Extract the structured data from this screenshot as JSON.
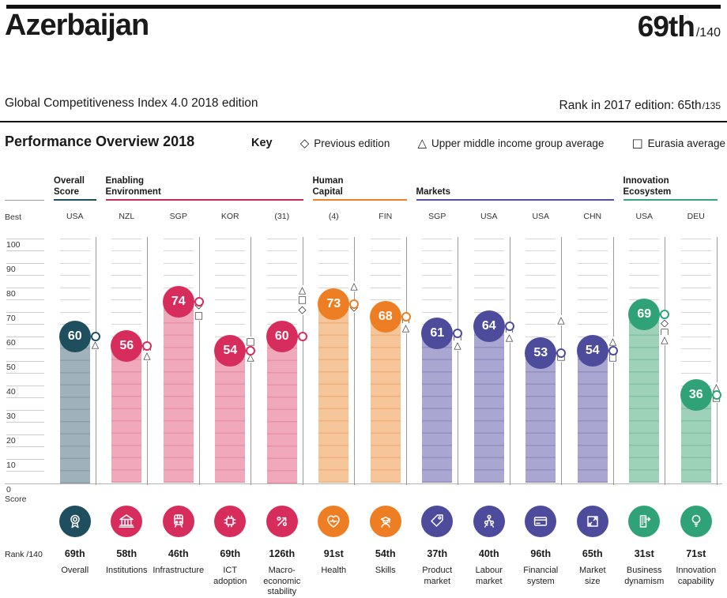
{
  "page": {
    "country": "Azerbaijan",
    "overall_rank": "69th",
    "overall_rank_denominator": "/140",
    "edition": "Global Competitiveness Index 4.0 2018 edition",
    "prev_rank_text": "Rank in 2017 edition: 65th",
    "prev_rank_denominator": "/135"
  },
  "overview": {
    "title": "Performance Overview 2018",
    "key_label": "Key",
    "legend": [
      {
        "glyph": "◇",
        "label": "Previous edition"
      },
      {
        "glyph": "△",
        "label": "Upper middle income group average"
      },
      {
        "glyph": "□",
        "label": "Eurasia average"
      }
    ]
  },
  "axis": {
    "best": "Best",
    "zero": "0",
    "score": "Score",
    "rank_axis": "Rank /140",
    "ticks": [
      100,
      90,
      80,
      70,
      60,
      50,
      40,
      30,
      20,
      10
    ]
  },
  "chart_data": {
    "type": "bar",
    "title": "Performance Overview 2018",
    "ylabel": "Score",
    "ylim": [
      0,
      100
    ],
    "gridline_step": 5,
    "legend_position": "top",
    "marker_meaning": {
      "diamond": "Previous edition",
      "triangle": "Upper middle income group average",
      "square": "Eurasia average",
      "pin": "2018 score"
    },
    "groups": [
      {
        "label": "Overall Score",
        "lines": [
          "Overall",
          "Score"
        ],
        "color": "#1F4E5F",
        "start": 0,
        "end": 0
      },
      {
        "label": "Enabling Environment",
        "lines": [
          "Enabling",
          "Environment"
        ],
        "color": "#C22E58",
        "start": 1,
        "end": 4
      },
      {
        "label": "Human Capital",
        "lines": [
          "Human",
          "Capital"
        ],
        "color": "#E8822D",
        "start": 5,
        "end": 6
      },
      {
        "label": "Markets",
        "lines": [
          "Markets"
        ],
        "color": "#524FA1",
        "start": 7,
        "end": 10
      },
      {
        "label": "Innovation Ecosystem",
        "lines": [
          "Innovation",
          "Ecosystem"
        ],
        "color": "#35A67C",
        "start": 11,
        "end": 12
      }
    ],
    "palette": [
      {
        "circle": "#1F4E5F",
        "bar": "#9FB1BB",
        "stripe": "#8AA0AC"
      },
      {
        "circle": "#D62D5D",
        "bar": "#F0A9BB",
        "stripe": "#E791A7"
      },
      {
        "circle": "#EE7E23",
        "bar": "#F6C69A",
        "stripe": "#F0AE7B"
      },
      {
        "circle": "#4D4B9C",
        "bar": "#A9A7D1",
        "stripe": "#938FC2"
      },
      {
        "circle": "#2FA377",
        "bar": "#9FD0B8",
        "stripe": "#82C2A2"
      }
    ],
    "columns": [
      {
        "pillar": "Overall",
        "name_lines": [
          "Overall"
        ],
        "best": "USA",
        "value": 60,
        "rank": "69th",
        "group": 0,
        "icon": "medal-icon",
        "markers": [
          {
            "type": "square",
            "value": 58.2
          },
          {
            "type": "triangle",
            "value": 56.2
          }
        ]
      },
      {
        "pillar": "Institutions",
        "name_lines": [
          "Institutions"
        ],
        "best": "NZL",
        "value": 56,
        "rank": "58th",
        "group": 1,
        "icon": "bank-icon",
        "markers": [
          {
            "type": "square",
            "value": 53.6
          },
          {
            "type": "triangle",
            "value": 51.9
          }
        ]
      },
      {
        "pillar": "Infrastructure",
        "name_lines": [
          "Infrastructure"
        ],
        "best": "SGP",
        "value": 74,
        "rank": "46th",
        "group": 1,
        "icon": "train-icon",
        "markers": [
          {
            "type": "diamond",
            "value": 72.4
          },
          {
            "type": "square",
            "value": 68.3
          }
        ]
      },
      {
        "pillar": "ICT adoption",
        "name_lines": [
          "ICT",
          "adoption"
        ],
        "best": "KOR",
        "value": 54,
        "rank": "69th",
        "group": 1,
        "icon": "chip-icon",
        "markers": [
          {
            "type": "square",
            "value": 57.6
          },
          {
            "type": "diamond",
            "value": 52.4
          },
          {
            "type": "triangle",
            "value": 51.0
          }
        ]
      },
      {
        "pillar": "Macro-economic stability",
        "name_lines": [
          "Macro-",
          "economic",
          "stability"
        ],
        "best": "(31)",
        "value": 60,
        "rank": "126th",
        "group": 1,
        "icon": "percent-arrow-icon",
        "markers": [
          {
            "type": "triangle",
            "value": 78.6
          },
          {
            "type": "square",
            "value": 74.6
          },
          {
            "type": "diamond",
            "value": 70.6
          }
        ]
      },
      {
        "pillar": "Health",
        "name_lines": [
          "Health"
        ],
        "best": "(4)",
        "value": 73,
        "rank": "91st",
        "group": 2,
        "icon": "heart-pulse-icon",
        "markers": [
          {
            "type": "triangle",
            "value": 80.2
          },
          {
            "type": "diamond",
            "value": 71.3
          }
        ]
      },
      {
        "pillar": "Skills",
        "name_lines": [
          "Skills"
        ],
        "best": "FIN",
        "value": 68,
        "rank": "54th",
        "group": 2,
        "icon": "graduate-icon",
        "markers": [
          {
            "type": "square",
            "value": 66.1
          },
          {
            "type": "triangle",
            "value": 63.2
          }
        ]
      },
      {
        "pillar": "Product market",
        "name_lines": [
          "Product",
          "market"
        ],
        "best": "SGP",
        "value": 61,
        "rank": "37th",
        "group": 3,
        "icon": "price-tag-icon",
        "markers": [
          {
            "type": "square",
            "value": 58.4
          },
          {
            "type": "triangle",
            "value": 56.0
          }
        ]
      },
      {
        "pillar": "Labour market",
        "name_lines": [
          "Labour",
          "market"
        ],
        "best": "USA",
        "value": 64,
        "rank": "40th",
        "group": 3,
        "icon": "people-network-icon",
        "markers": [
          {
            "type": "square",
            "value": 62.4
          },
          {
            "type": "triangle",
            "value": 59.2
          }
        ]
      },
      {
        "pillar": "Financial system",
        "name_lines": [
          "Financial",
          "system"
        ],
        "best": "USA",
        "value": 53,
        "rank": "96th",
        "group": 3,
        "icon": "credit-card-icon",
        "markers": [
          {
            "type": "triangle",
            "value": 66.2
          },
          {
            "type": "square",
            "value": 51.4
          }
        ]
      },
      {
        "pillar": "Market size",
        "name_lines": [
          "Market",
          "size"
        ],
        "best": "CHN",
        "value": 54,
        "rank": "65th",
        "group": 3,
        "icon": "expand-arrows-icon",
        "markers": [
          {
            "type": "triangle",
            "value": 57.6
          },
          {
            "type": "square",
            "value": 51.2
          }
        ]
      },
      {
        "pillar": "Business dynamism",
        "name_lines": [
          "Business",
          "dynamism"
        ],
        "best": "USA",
        "value": 69,
        "rank": "31st",
        "group": 4,
        "icon": "building-growth-icon",
        "markers": [
          {
            "type": "diamond",
            "value": 65.0
          },
          {
            "type": "square",
            "value": 61.6
          },
          {
            "type": "triangle",
            "value": 58.3
          }
        ]
      },
      {
        "pillar": "Innovation capability",
        "name_lines": [
          "Innovation",
          "capability"
        ],
        "best": "DEU",
        "value": 36,
        "rank": "71st",
        "group": 4,
        "icon": "lightbulb-icon",
        "markers": [
          {
            "type": "triangle",
            "value": 39.0
          },
          {
            "type": "square",
            "value": 34.6
          }
        ]
      }
    ]
  }
}
